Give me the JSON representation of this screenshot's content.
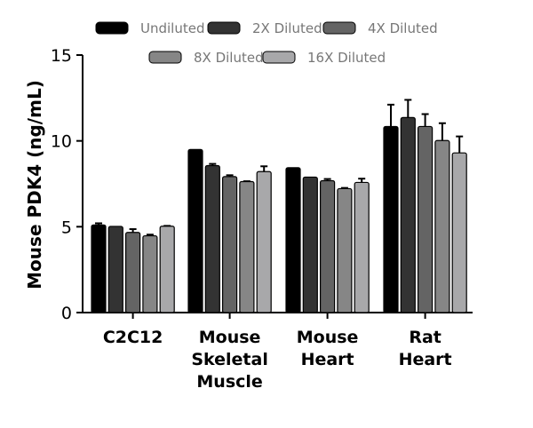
{
  "chart_data": {
    "type": "bar",
    "title": "",
    "xlabel": "",
    "ylabel": "Mouse PDK4 (ng/mL)",
    "ylim": [
      0,
      15
    ],
    "yticks": [
      "0",
      "5",
      "10",
      "15"
    ],
    "categories": [
      [
        "C2C12"
      ],
      [
        "Mouse",
        "Skeletal",
        "Muscle"
      ],
      [
        "Mouse",
        "Heart"
      ],
      [
        "Rat",
        "Heart"
      ]
    ],
    "legend_position": "top",
    "grid": false,
    "error_bars": "upper",
    "series": [
      {
        "name": "Undiluted",
        "color": "#000000",
        "values": [
          5.1,
          9.5,
          8.44,
          10.84
        ],
        "error_top": [
          5.2,
          9.5,
          8.44,
          12.11
        ]
      },
      {
        "name": "2X Diluted",
        "color": "#333333",
        "values": [
          5.02,
          8.56,
          7.89,
          11.36
        ],
        "error_top": [
          5.02,
          8.66,
          7.89,
          12.39
        ]
      },
      {
        "name": "4X Diluted",
        "color": "#646464",
        "values": [
          4.67,
          7.92,
          7.68,
          10.84
        ],
        "error_top": [
          4.86,
          8.0,
          7.78,
          11.56
        ]
      },
      {
        "name": "8X Diluted",
        "color": "#868686",
        "values": [
          4.47,
          7.63,
          7.22,
          10.02
        ],
        "error_top": [
          4.54,
          7.65,
          7.26,
          11.03
        ]
      },
      {
        "name": "16X Diluted",
        "color": "#a8a8aa",
        "values": [
          5.03,
          8.21,
          7.58,
          9.3
        ],
        "error_top": [
          5.05,
          8.52,
          7.8,
          10.26
        ]
      }
    ]
  }
}
